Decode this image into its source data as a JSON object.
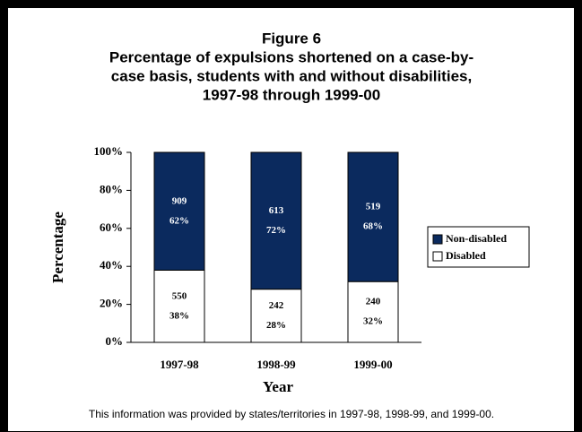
{
  "chart_data": {
    "type": "stacked_bar",
    "title": [
      "Figure 6",
      "Percentage of expulsions shortened on a case-by-",
      "case basis, students with and without disabilities,",
      "1997-98 through 1999-00"
    ],
    "x_label": "Year",
    "y_label": "Percentage",
    "categories": [
      "1997-98",
      "1998-99",
      "1999-00"
    ],
    "series": [
      {
        "name": "Disabled",
        "color": "#ffffff",
        "values": [
          38,
          28,
          32
        ],
        "value_labels": [
          "38%",
          "28%",
          "32%"
        ],
        "counts": [
          550,
          242,
          240
        ]
      },
      {
        "name": "Non-disabled",
        "color": "#0b2a5e",
        "values": [
          62,
          72,
          68
        ],
        "value_labels": [
          "62%",
          "72%",
          "68%"
        ],
        "counts": [
          909,
          613,
          519
        ]
      }
    ],
    "ylim": [
      0,
      100
    ],
    "yticks": [
      {
        "value": 0,
        "label": "0%"
      },
      {
        "value": 20,
        "label": "20%"
      },
      {
        "value": 40,
        "label": "40%"
      },
      {
        "value": 60,
        "label": "60%"
      },
      {
        "value": 80,
        "label": "80%"
      },
      {
        "value": 100,
        "label": "100%"
      }
    ],
    "legend": "right",
    "footnote": "This information was provided by states/territories in 1997-98, 1998-99, and 1999-00."
  }
}
